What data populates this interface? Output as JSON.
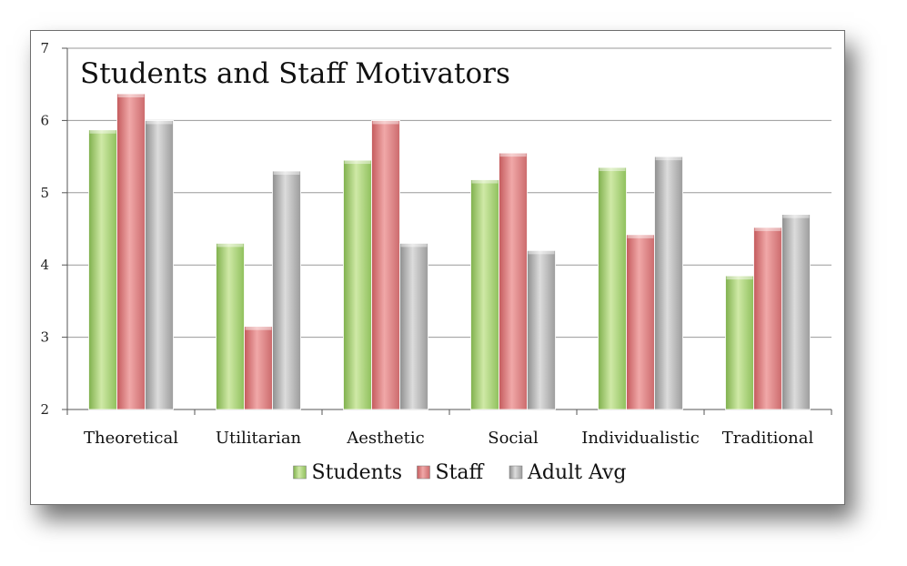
{
  "chart_data": {
    "type": "bar",
    "title": "Students and Staff Motivators",
    "xlabel": "",
    "ylabel": "",
    "ylim": [
      2,
      7
    ],
    "yticks": [
      2,
      3,
      4,
      5,
      6,
      7
    ],
    "grid": true,
    "legend_position": "bottom",
    "categories": [
      "Theoretical",
      "Utilitarian",
      "Aesthetic",
      "Social",
      "Individualistic",
      "Traditional"
    ],
    "series": [
      {
        "name": "Students",
        "color": "#9cc86a",
        "values": [
          5.87,
          4.3,
          5.45,
          5.18,
          5.35,
          3.85
        ]
      },
      {
        "name": "Staff",
        "color": "#d9787a",
        "values": [
          6.37,
          3.15,
          6.0,
          5.55,
          4.42,
          4.52
        ]
      },
      {
        "name": "Adult Avg",
        "color": "#b0b0b0",
        "values": [
          6.0,
          5.3,
          4.3,
          4.2,
          5.5,
          4.7
        ]
      }
    ]
  }
}
